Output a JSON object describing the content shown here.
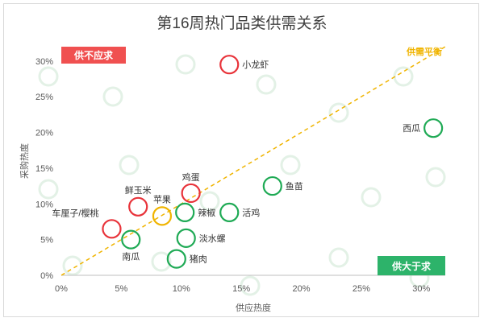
{
  "chart_data": {
    "type": "scatter",
    "title": "第16周热门品类供需关系",
    "xlabel": "供应热度",
    "ylabel": "采购热度",
    "xlim": [
      0,
      0.32
    ],
    "ylim": [
      0,
      0.32
    ],
    "xticks": [
      "0%",
      "5%",
      "10%",
      "15%",
      "20%",
      "25%",
      "30%"
    ],
    "yticks": [
      "0%",
      "5%",
      "10%",
      "15%",
      "20%",
      "25%",
      "30%"
    ],
    "grid": false,
    "balance_line_label": "供需平衡",
    "region_labels": {
      "top_left": "供不应求",
      "bottom_right": "供大于求"
    },
    "colors": {
      "demand_exceeds": "#e8333a",
      "balanced": "#f0b400",
      "supply_exceeds": "#1faa55",
      "balance_line": "#f0b400",
      "badge_red": "#f05050",
      "badge_green": "#2db36a"
    },
    "points": [
      {
        "name": "小龙虾",
        "x": 0.14,
        "y": 0.295,
        "status": "demand_exceeds"
      },
      {
        "name": "西瓜",
        "x": 0.31,
        "y": 0.206,
        "status": "supply_exceeds"
      },
      {
        "name": "鱼苗",
        "x": 0.176,
        "y": 0.125,
        "status": "supply_exceeds"
      },
      {
        "name": "鸡蛋",
        "x": 0.108,
        "y": 0.115,
        "status": "demand_exceeds"
      },
      {
        "name": "鲜玉米",
        "x": 0.064,
        "y": 0.096,
        "status": "demand_exceeds"
      },
      {
        "name": "苹果",
        "x": 0.084,
        "y": 0.083,
        "status": "balanced"
      },
      {
        "name": "辣椒",
        "x": 0.103,
        "y": 0.088,
        "status": "supply_exceeds"
      },
      {
        "name": "活鸡",
        "x": 0.14,
        "y": 0.088,
        "status": "supply_exceeds"
      },
      {
        "name": "车厘子/樱桃",
        "x": 0.042,
        "y": 0.065,
        "status": "demand_exceeds"
      },
      {
        "name": "南瓜",
        "x": 0.058,
        "y": 0.05,
        "status": "supply_exceeds"
      },
      {
        "name": "淡水螺",
        "x": 0.104,
        "y": 0.052,
        "status": "supply_exceeds"
      },
      {
        "name": "猪肉",
        "x": 0.096,
        "y": 0.023,
        "status": "supply_exceeds"
      }
    ]
  }
}
